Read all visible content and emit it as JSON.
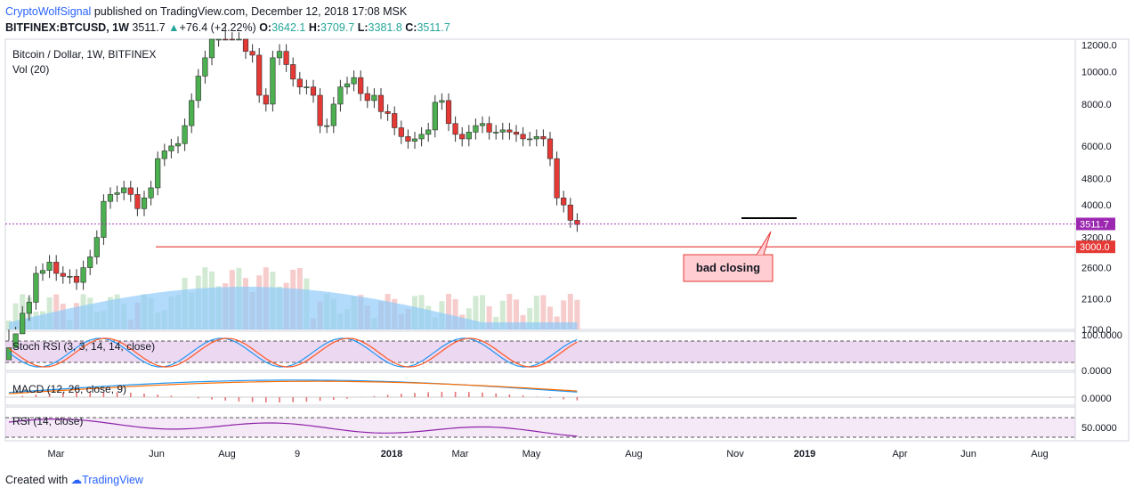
{
  "header": {
    "author": "CryptoWolfSignal",
    "published": "published on TradingView.com, December 12, 2018 17:08 MSK",
    "symbol": "BITFINEX:BTCUSD, 1W",
    "last": "3511.7",
    "change": "+76.4 (+2.22%)",
    "o_label": "O:",
    "o": "3642.1",
    "h_label": "H:",
    "h": "3709.7",
    "l_label": "L:",
    "l": "3381.8",
    "c_label": "C:",
    "c": "3511.7"
  },
  "panels": {
    "main_title": "Bitcoin / Dollar, 1W, BITFINEX",
    "vol_label": "Vol (20)",
    "stoch_label": "Stoch RSI (3, 3, 14, 14, close)",
    "macd_label": "MACD (12, 26, close, 9)",
    "rsi_label": "RSI (14, close)"
  },
  "annotation": {
    "text": "bad closing"
  },
  "footer": {
    "created": "Created with",
    "brand": "TradingView"
  },
  "colors": {
    "up": "#26a69a",
    "down": "#ef5350",
    "candle_up": "#4caf50",
    "candle_down": "#e53935",
    "support": "#e53935",
    "current": "#9c27b0",
    "vol_ma": "#90caf9"
  },
  "chart_data": [
    {
      "type": "candlestick",
      "title": "Bitcoin / Dollar, 1W, BITFINEX",
      "scale": "log",
      "ylim": [
        1700,
        12500
      ],
      "y_ticks": [
        "12000.0",
        "10000.0",
        "8000.0",
        "6000.0",
        "4800.0",
        "4000.0",
        "3200.0",
        "2600.0",
        "2100.0",
        "1700.0"
      ],
      "x_ticks": [
        "Mar",
        "Jun",
        "Aug",
        "9",
        "2018",
        "Mar",
        "May",
        "Aug",
        "Nov",
        "2019",
        "Apr",
        "Jun",
        "Aug"
      ],
      "current_price": "3511.7",
      "support_level": "3000.0",
      "support_value": 3000,
      "current_value": 3511.7,
      "closes": [
        1500,
        1650,
        1900,
        2050,
        2500,
        2550,
        2700,
        2500,
        2450,
        2450,
        2350,
        2600,
        2800,
        3200,
        4100,
        4300,
        4350,
        4500,
        4300,
        3900,
        4200,
        4500,
        5500,
        5800,
        6000,
        6100,
        6900,
        8200,
        9700,
        11000,
        12500,
        15000,
        14500,
        13800,
        14500,
        11500,
        11200,
        8500,
        8000,
        11000,
        11500,
        10500,
        9500,
        9000,
        9000,
        8500,
        6900,
        6900,
        8000,
        9000,
        9200,
        9600,
        8600,
        8200,
        8500,
        7600,
        7500,
        6800,
        6400,
        6200,
        6300,
        6500,
        6700,
        8100,
        8200,
        7000,
        6500,
        6300,
        6600,
        6900,
        7000,
        6600,
        6600,
        6700,
        6600,
        6500,
        6300,
        6300,
        6400,
        6300,
        5500,
        4200,
        4000,
        3600,
        3500
      ],
      "volume_series": "Vol (20)"
    },
    {
      "type": "line",
      "title": "Stoch RSI (3, 3, 14, 14, close)",
      "y_ticks": [
        "100.0000",
        "0.0000"
      ]
    },
    {
      "type": "line",
      "title": "MACD (12, 26, close, 9)",
      "y_ticks": [
        "0.0000"
      ]
    },
    {
      "type": "line",
      "title": "RSI (14, close)",
      "y_ticks": [
        "50.0000"
      ]
    }
  ]
}
